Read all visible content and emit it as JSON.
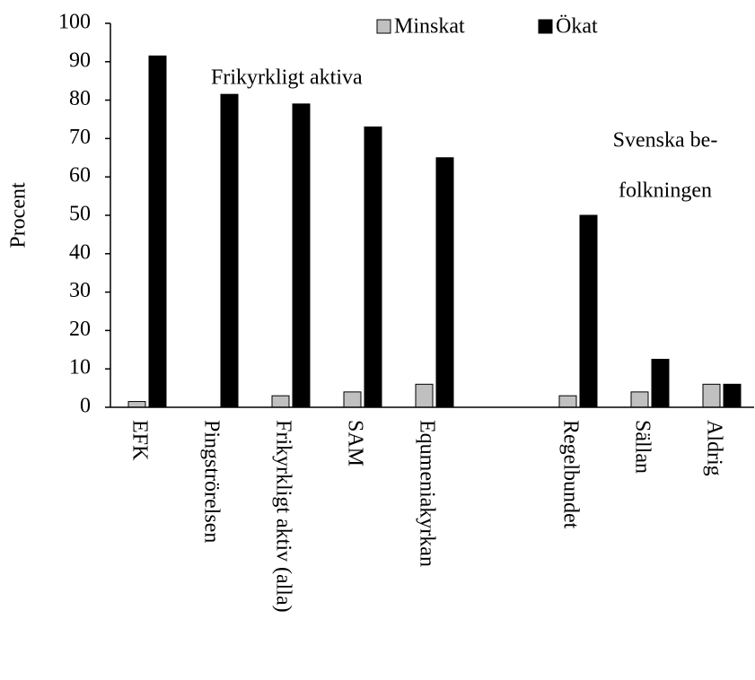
{
  "chart_data": {
    "type": "bar",
    "y_label": "Procent",
    "categories": [
      "EFK",
      "Pingströrelsen",
      "Frikyrkligt aktiv (alla)",
      "SAM",
      "Equmeniakyrkan",
      null,
      "Regelbundet",
      "Sällan",
      "Aldrig"
    ],
    "series": [
      {
        "name": "Minskat",
        "color": "#c0c0c0",
        "values": [
          1.5,
          0,
          3,
          4,
          6,
          null,
          3,
          4,
          6
        ]
      },
      {
        "name": "Ökat",
        "color": "#000000",
        "values": [
          91.5,
          81.5,
          79,
          73,
          65,
          null,
          50,
          12.5,
          6
        ]
      }
    ],
    "annotations": [
      "Frikyrkligt aktiva",
      "Svenska be-",
      "folkningen"
    ],
    "ylim": [
      0,
      100
    ],
    "yticks": [
      0,
      10,
      20,
      30,
      40,
      50,
      60,
      70,
      80,
      90,
      100
    ],
    "grid": false,
    "legend": "top"
  }
}
